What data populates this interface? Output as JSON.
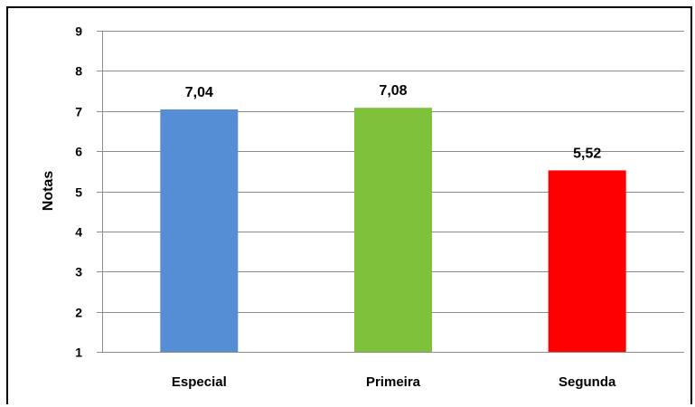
{
  "chart_data": {
    "type": "bar",
    "categories": [
      "Especial",
      "Primeira",
      "Segunda"
    ],
    "values": [
      7.04,
      7.08,
      5.52
    ],
    "data_labels": [
      "7,04",
      "7,08",
      "5,52"
    ],
    "colors": [
      "#558ED5",
      "#7DC23A",
      "#FF0000"
    ],
    "title": "",
    "xlabel": "",
    "ylabel": "Notas",
    "ylim": [
      1,
      9
    ],
    "yticks": [
      1,
      2,
      3,
      4,
      5,
      6,
      7,
      8,
      9
    ],
    "grid": true,
    "gridline_color": "#8C8C8C",
    "legend": "none"
  }
}
